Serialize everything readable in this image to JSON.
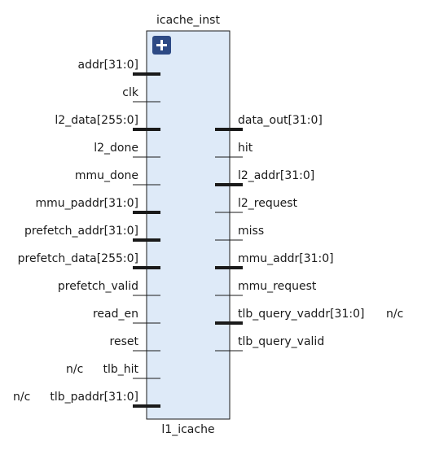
{
  "block": {
    "instance_name": "icache_inst",
    "module_name": "l1_icache",
    "expand_icon": "plus-icon"
  },
  "input_ports": [
    {
      "name": "addr[31:0]",
      "bus": true,
      "note": ""
    },
    {
      "name": "clk",
      "bus": false,
      "note": ""
    },
    {
      "name": "l2_data[255:0]",
      "bus": true,
      "note": ""
    },
    {
      "name": "l2_done",
      "bus": false,
      "note": ""
    },
    {
      "name": "mmu_done",
      "bus": false,
      "note": ""
    },
    {
      "name": "mmu_paddr[31:0]",
      "bus": true,
      "note": ""
    },
    {
      "name": "prefetch_addr[31:0]",
      "bus": true,
      "note": ""
    },
    {
      "name": "prefetch_data[255:0]",
      "bus": true,
      "note": ""
    },
    {
      "name": "prefetch_valid",
      "bus": false,
      "note": ""
    },
    {
      "name": "read_en",
      "bus": false,
      "note": ""
    },
    {
      "name": "reset",
      "bus": false,
      "note": ""
    },
    {
      "name": "tlb_hit",
      "bus": false,
      "note": "n/c"
    },
    {
      "name": "tlb_paddr[31:0]",
      "bus": true,
      "note": "n/c"
    }
  ],
  "output_ports": [
    {
      "name": "data_out[31:0]",
      "bus": true,
      "note": ""
    },
    {
      "name": "hit",
      "bus": false,
      "note": ""
    },
    {
      "name": "l2_addr[31:0]",
      "bus": true,
      "note": ""
    },
    {
      "name": "l2_request",
      "bus": false,
      "note": ""
    },
    {
      "name": "miss",
      "bus": false,
      "note": ""
    },
    {
      "name": "mmu_addr[31:0]",
      "bus": true,
      "note": ""
    },
    {
      "name": "mmu_request",
      "bus": false,
      "note": ""
    },
    {
      "name": "tlb_query_vaddr[31:0]",
      "bus": true,
      "note": "n/c"
    },
    {
      "name": "tlb_query_valid",
      "bus": false,
      "note": ""
    }
  ],
  "colors": {
    "block_fill": "#deeaf8",
    "block_stroke": "#1a1a1a",
    "wire": "#1a1a1a",
    "icon_fill": "#2d4a85",
    "icon_glyph": "#ffffff"
  }
}
